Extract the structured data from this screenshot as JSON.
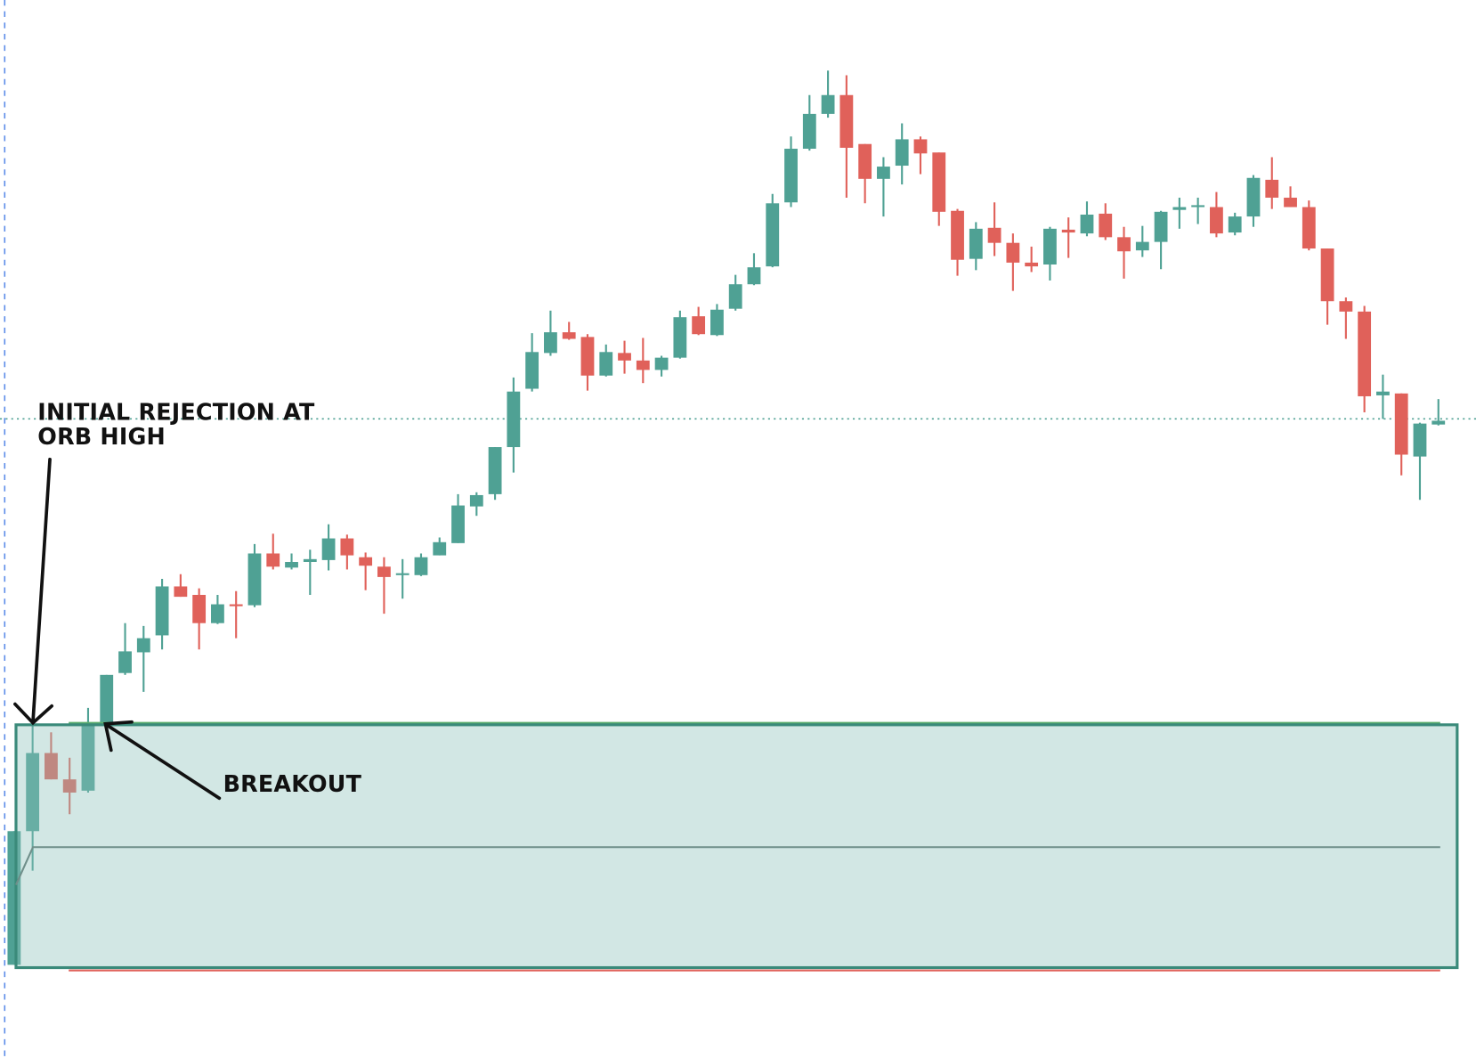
{
  "chart_data": {
    "type": "candlestick",
    "open": [
      9.9,
      24.1,
      32.4,
      29.6,
      28.4,
      35.6,
      40.9,
      43.1,
      44.9,
      50.1,
      49.2,
      46.2,
      48.2,
      48.1,
      53.6,
      52.1,
      52.7,
      52.9,
      55.2,
      53.2,
      52.2,
      51.3,
      51.3,
      53.4,
      54.7,
      58.6,
      59.9,
      64.9,
      71.1,
      74.9,
      77.1,
      76.6,
      72.5,
      74.9,
      74.1,
      73.1,
      74.4,
      78.8,
      76.8,
      79.6,
      82.2,
      84.1,
      90.9,
      96.6,
      100.3,
      102.3,
      97.1,
      93.4,
      94.8,
      97.6,
      96.2,
      90.0,
      84.9,
      88.2,
      86.6,
      84.5,
      84.3,
      88.0,
      87.6,
      89.7,
      87.2,
      85.8,
      86.7,
      90.1,
      90.4,
      90.4,
      87.7,
      89.4,
      93.3,
      91.4,
      90.4,
      86.0,
      80.4,
      79.3,
      70.4,
      70.6,
      63.9,
      67.3
    ],
    "high": [
      24.1,
      35.4,
      34.6,
      31.9,
      37.2,
      40.7,
      46.2,
      45.9,
      50.9,
      51.4,
      49.9,
      49.2,
      49.6,
      54.6,
      55.7,
      53.6,
      54.0,
      56.7,
      55.6,
      53.7,
      53.2,
      53.0,
      53.6,
      55.3,
      59.9,
      60.1,
      64.9,
      72.3,
      77.0,
      79.4,
      78.2,
      76.9,
      75.8,
      76.2,
      76.5,
      74.6,
      79.4,
      79.8,
      80.1,
      83.2,
      85.5,
      91.8,
      97.9,
      102.3,
      104.9,
      104.4,
      97.1,
      95.7,
      99.3,
      97.9,
      96.2,
      90.2,
      88.8,
      90.9,
      87.6,
      86.2,
      88.3,
      89.3,
      91.0,
      90.8,
      88.3,
      88.4,
      90.0,
      91.4,
      91.4,
      92.0,
      89.8,
      93.8,
      95.7,
      92.6,
      91.1,
      86.0,
      80.8,
      79.9,
      72.6,
      70.6,
      67.5,
      70.0
    ],
    "low": [
      9.9,
      19.9,
      29.6,
      25.9,
      28.2,
      35.4,
      40.7,
      38.9,
      43.4,
      49.0,
      43.4,
      46.1,
      44.6,
      47.9,
      51.9,
      51.9,
      49.2,
      51.8,
      51.9,
      49.7,
      47.2,
      48.8,
      51.2,
      53.4,
      54.7,
      57.6,
      59.3,
      62.2,
      70.8,
      74.6,
      76.3,
      70.9,
      72.4,
      72.7,
      71.7,
      72.4,
      74.3,
      76.8,
      76.7,
      79.4,
      82.1,
      84.0,
      90.4,
      96.4,
      99.9,
      91.4,
      90.8,
      89.4,
      92.8,
      93.9,
      88.4,
      83.1,
      83.7,
      85.2,
      81.5,
      83.5,
      82.6,
      85.0,
      87.3,
      86.9,
      82.8,
      85.1,
      83.8,
      88.1,
      88.6,
      87.2,
      87.4,
      88.3,
      90.2,
      90.4,
      85.8,
      77.9,
      76.4,
      68.6,
      67.9,
      61.9,
      59.3,
      67.2
    ],
    "close": [
      24.1,
      32.4,
      29.6,
      28.2,
      35.6,
      40.7,
      43.2,
      44.6,
      50.1,
      49.0,
      46.2,
      48.2,
      48.0,
      53.6,
      52.2,
      52.7,
      53.0,
      55.2,
      53.4,
      52.3,
      51.1,
      51.5,
      53.2,
      54.8,
      58.7,
      59.8,
      64.9,
      70.8,
      75.0,
      77.1,
      76.4,
      72.5,
      75.0,
      74.1,
      73.1,
      74.4,
      78.7,
      76.9,
      79.5,
      82.2,
      84.0,
      90.8,
      96.6,
      100.3,
      102.3,
      96.7,
      93.4,
      94.7,
      97.6,
      96.1,
      89.9,
      84.8,
      88.1,
      86.6,
      84.5,
      84.1,
      88.1,
      87.7,
      89.6,
      87.2,
      85.7,
      86.7,
      89.9,
      90.4,
      90.6,
      87.6,
      89.4,
      93.5,
      91.4,
      90.4,
      86.0,
      80.4,
      79.3,
      70.3,
      70.8,
      64.1,
      67.4,
      67.7
    ],
    "up_color": "#4fa194",
    "down_color": "#e0615a",
    "ylim": [
      0,
      112.4
    ],
    "orb_high": 35.4,
    "orb_low": 9.6,
    "orb_mid": 22.4,
    "orb_fill": "#8fc2bc",
    "orb_border": "#3a8a7a",
    "reference_level": 67.9,
    "reference_color": "#4fa194",
    "annotations": {
      "rejection": [
        "INITIAL REJECTION AT",
        "ORB HIGH"
      ],
      "breakout": "BREAKOUT"
    }
  }
}
